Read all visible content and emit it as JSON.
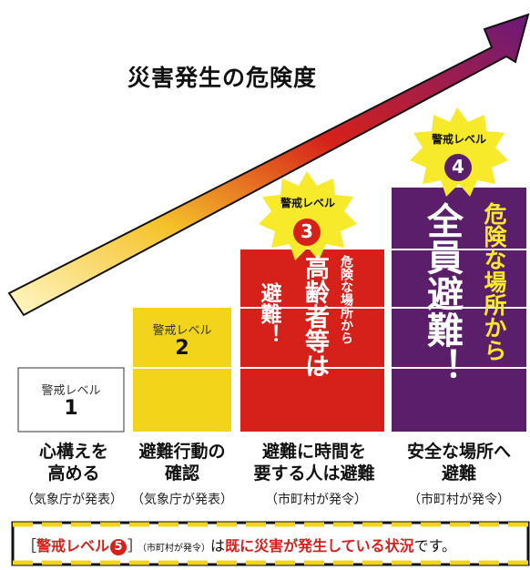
{
  "title": "災害発生の危険度",
  "levels": [
    {
      "badge": "警戒レベル",
      "number": "1",
      "action": [
        "心構えを",
        "高める"
      ],
      "issuer": "（気象庁が発表）"
    },
    {
      "badge": "警戒レベル",
      "number": "2",
      "action": [
        "避難行動の",
        "確認"
      ],
      "issuer": "（気象庁が発表）"
    },
    {
      "badge": "警戒レベル",
      "number": "3",
      "action": [
        "避難に時間を",
        "要する人は避難"
      ],
      "issuer": "（市町村が発令）",
      "big_text": "高齢者等は",
      "small_text": "危険な場所から",
      "side_text": "避難！"
    },
    {
      "badge": "警戒レベル",
      "number": "4",
      "action": [
        "安全な場所へ",
        "避難"
      ],
      "issuer": "（市町村が発令）",
      "small_text": "危険な場所から",
      "big_text": "全員避難！"
    }
  ],
  "notice": {
    "bracket_open": "［",
    "level_label": "警戒レベル",
    "level_number": "5",
    "bracket_close": "］",
    "issuer": "（市町村が発令）",
    "particle": "は",
    "emphasis": "既に災害が発生している状況",
    "tail": "です。"
  },
  "colors": {
    "level1": "#ffffff",
    "level2": "#f2d41b",
    "level3": "#d6201a",
    "level4": "#5b1e6b",
    "starburst": "#f6ea2a",
    "notice_stripe": "#f2d41b"
  }
}
